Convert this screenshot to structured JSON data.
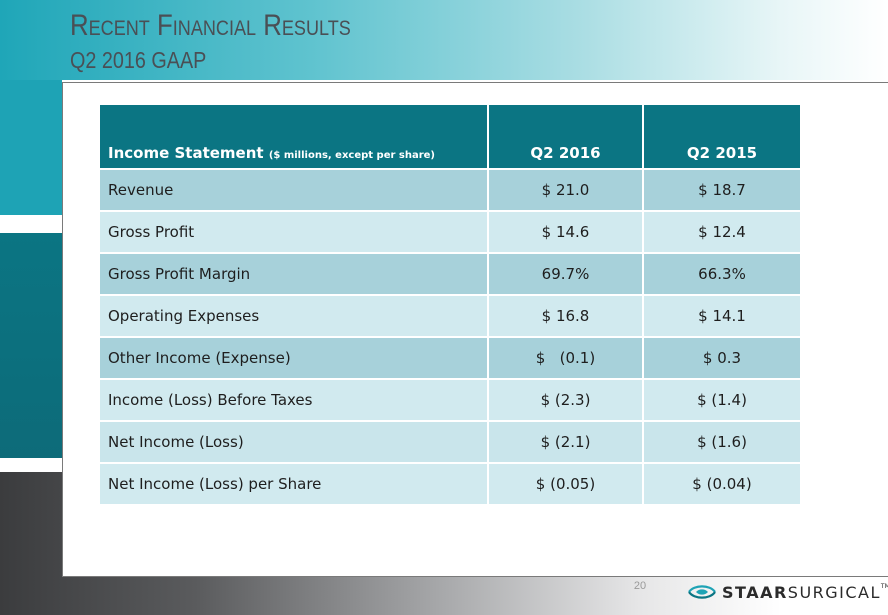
{
  "title": "Recent Financial Results",
  "subtitle": "Q2 2016 GAAP",
  "table": {
    "header": {
      "label": "Income Statement",
      "label_note": "($ millions, except per share)",
      "col1": "Q2 2016",
      "col2": "Q2 2015"
    },
    "rows": [
      {
        "label": "Revenue",
        "q2_2016": "$ 21.0",
        "q2_2015": "$ 18.7"
      },
      {
        "label": "Gross Profit",
        "q2_2016": "$ 14.6",
        "q2_2015": "$ 12.4"
      },
      {
        "label": "Gross Profit Margin",
        "q2_2016": "69.7%",
        "q2_2015": "66.3%"
      },
      {
        "label": "Operating Expenses",
        "q2_2016": "$ 16.8",
        "q2_2015": "$ 14.1"
      },
      {
        "label": "Other Income (Expense)",
        "q2_2016": "$   (0.1)",
        "q2_2015": "$ 0.3"
      },
      {
        "label": "Income (Loss) Before Taxes",
        "q2_2016": "$ (2.3)",
        "q2_2015": "$ (1.4)"
      },
      {
        "label": "Net Income (Loss)",
        "q2_2016": "$ (2.1)",
        "q2_2015": "$ (1.6)"
      },
      {
        "label": "Net Income (Loss) per Share",
        "q2_2016": "$ (0.05)",
        "q2_2015": "$ (0.04)"
      }
    ]
  },
  "footer": {
    "page_number": "20",
    "logo_bold": "STAAR",
    "logo_rest": "SURGICAL",
    "logo_tm": "TM"
  },
  "colors": {
    "header_teal": "#0b7583",
    "row_dark": "#a7d1da",
    "row_light": "#d1eaef",
    "title_gray": "#4a4f55"
  }
}
